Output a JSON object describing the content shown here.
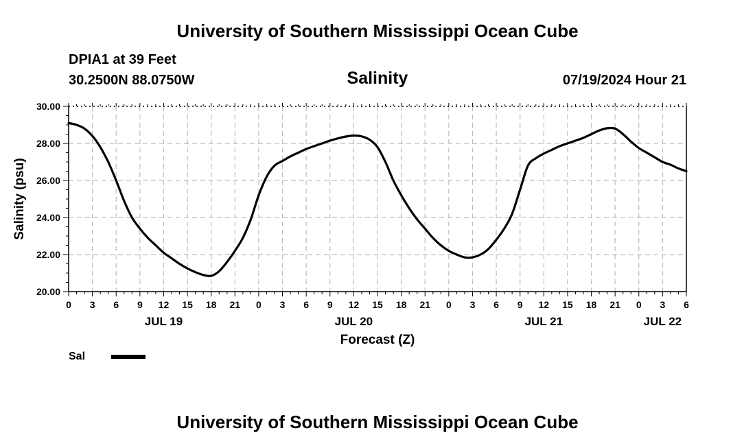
{
  "header": {
    "title": "University of Southern Mississippi Ocean Cube",
    "station": "DPIA1 at 39 Feet",
    "location": "30.2500N  88.0750W",
    "timestamp": "07/19/2024 Hour 21"
  },
  "footer": {
    "title": "University of Southern Mississippi Ocean Cube"
  },
  "legend": {
    "label": "Sal",
    "color": "#000000"
  },
  "chart_data": {
    "type": "line",
    "title": "Salinity",
    "xlabel": "Forecast (Z)",
    "ylabel": "Salinity (psu)",
    "ylim": [
      20,
      30
    ],
    "xlim_hours": [
      0,
      78
    ],
    "yticks": [
      "20.00",
      "22.00",
      "24.00",
      "26.00",
      "28.00",
      "30.00"
    ],
    "xticks": [
      "0",
      "3",
      "6",
      "9",
      "12",
      "15",
      "18",
      "21",
      "0",
      "3",
      "6",
      "9",
      "12",
      "15",
      "18",
      "21",
      "0",
      "3",
      "6",
      "9",
      "12",
      "15",
      "18",
      "21",
      "0",
      "3",
      "6"
    ],
    "date_labels": [
      {
        "label": "JUL 19",
        "hour": 12
      },
      {
        "label": "JUL 20",
        "hour": 36
      },
      {
        "label": "JUL 21",
        "hour": 60
      },
      {
        "label": "JUL 22",
        "hour": 75
      }
    ],
    "grid": true,
    "series": [
      {
        "name": "Sal",
        "x": [
          0,
          1,
          2,
          3,
          4,
          5,
          6,
          7,
          8,
          9,
          10,
          11,
          12,
          13,
          14,
          15,
          16,
          17,
          18,
          19,
          20,
          21,
          22,
          23,
          24,
          25,
          26,
          27,
          28,
          29,
          30,
          31,
          32,
          33,
          34,
          35,
          36,
          37,
          38,
          39,
          40,
          41,
          42,
          43,
          44,
          45,
          46,
          47,
          48,
          49,
          50,
          51,
          52,
          53,
          54,
          55,
          56,
          57,
          58,
          59,
          60,
          61,
          62,
          63,
          64,
          65,
          66,
          67,
          68,
          69,
          70,
          71,
          72,
          73,
          74,
          75,
          76,
          77,
          78
        ],
        "values": [
          29.1,
          29.0,
          28.8,
          28.4,
          27.8,
          27.0,
          26.0,
          24.9,
          24.0,
          23.4,
          22.9,
          22.5,
          22.1,
          21.8,
          21.5,
          21.25,
          21.05,
          20.9,
          20.85,
          21.1,
          21.6,
          22.2,
          22.9,
          23.9,
          25.2,
          26.2,
          26.8,
          27.05,
          27.3,
          27.5,
          27.7,
          27.85,
          28.0,
          28.15,
          28.27,
          28.37,
          28.42,
          28.38,
          28.2,
          27.8,
          27.0,
          26.0,
          25.2,
          24.5,
          23.9,
          23.4,
          22.9,
          22.5,
          22.2,
          22.0,
          21.85,
          21.85,
          22.0,
          22.3,
          22.8,
          23.4,
          24.2,
          25.5,
          26.8,
          27.2,
          27.45,
          27.65,
          27.85,
          28.0,
          28.15,
          28.3,
          28.5,
          28.7,
          28.82,
          28.8,
          28.5,
          28.1,
          27.75,
          27.5,
          27.25,
          27.0,
          26.85,
          26.65,
          26.5
        ]
      }
    ]
  }
}
